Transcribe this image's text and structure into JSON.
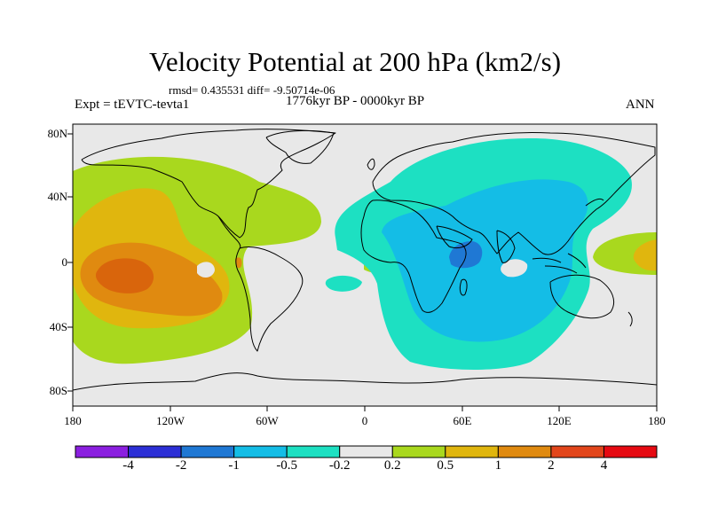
{
  "title": "Velocity Potential at 200 hPa (km2/s)",
  "stats": "rmsd= 0.435531 diff= -9.50714e-06",
  "period": "1776kyr BP - 0000kyr BP",
  "experiment": "Expt = tEVTC-tevta1",
  "season": "ANN",
  "map": {
    "lat_labels": [
      "80N",
      "40N",
      "0",
      "40S",
      "80S"
    ],
    "lon_labels": [
      "180",
      "120W",
      "60W",
      "0",
      "60E",
      "120E",
      "180"
    ]
  },
  "colorbar": {
    "labels": [
      "-4",
      "-2",
      "-1",
      "-0.5",
      "-0.2",
      "0.2",
      "0.5",
      "1",
      "2",
      "4"
    ],
    "colors": [
      "#8b1fe0",
      "#2c2fd6",
      "#1f78d4",
      "#14bde6",
      "#1de0c2",
      "#e8e8e8",
      "#a9d81e",
      "#e0b60e",
      "#e08a10",
      "#e2461b",
      "#e60a12"
    ]
  },
  "colors": {
    "ocean_bg": "#e8e8e8",
    "pos_02": "#a9d81e",
    "pos_05": "#e0b60e",
    "pos_1": "#e08a10",
    "pos_2": "#d9650c",
    "neg_02": "#1de0c2",
    "neg_05": "#14bde6",
    "neg_1": "#1f78d4"
  }
}
